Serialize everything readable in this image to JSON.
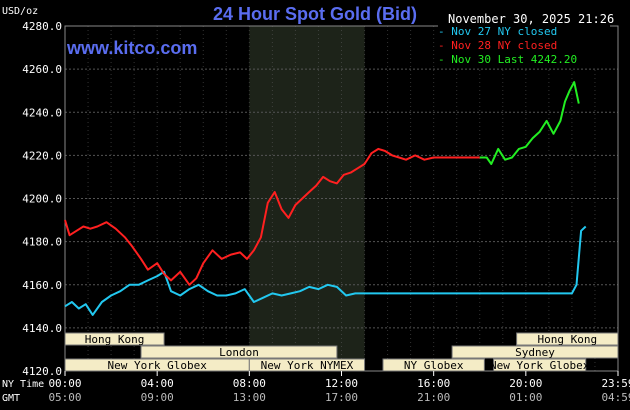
{
  "header": {
    "title": "24 Hour Spot Gold (Bid)",
    "brand": "www.kitco.com",
    "unit": "USD/oz",
    "timestamp": "November 30, 2025 21:26"
  },
  "legend": {
    "placement": "top-right",
    "items": [
      {
        "label": "- Nov 27 NY closed",
        "color": "#22c8f0"
      },
      {
        "label": "- Nov 28 NY closed",
        "color": "#ff2020"
      },
      {
        "label": "- Nov 30 Last 4242.20",
        "color": "#22ee22"
      }
    ]
  },
  "sessions": {
    "rows": [
      [
        {
          "label": "Hong Kong",
          "start": 0,
          "end": 4.3
        },
        {
          "label": "Hong Kong",
          "start": 19.6,
          "end": 24
        }
      ],
      [
        {
          "label": "London",
          "start": 3.3,
          "end": 11.8
        },
        {
          "label": "Sydney",
          "start": 16.8,
          "end": 24
        }
      ],
      [
        {
          "label": "New York Globex",
          "start": 0,
          "end": 8.0
        },
        {
          "label": "New York NYMEX",
          "start": 8.0,
          "end": 13.0
        },
        {
          "label": "NY Globex",
          "start": 13.8,
          "end": 18.2
        },
        {
          "label": "New York Globex",
          "start": 18.6,
          "end": 22.6
        }
      ]
    ]
  },
  "time_rows": [
    {
      "name": "NY Time",
      "ticks": [
        "00:00",
        "04:00",
        "08:00",
        "12:00",
        "16:00",
        "20:00",
        "23:59"
      ]
    },
    {
      "name": "GMT",
      "ticks": [
        "05:00",
        "09:00",
        "13:00",
        "17:00",
        "21:00",
        "01:00",
        "04:59"
      ]
    }
  ],
  "colors": {
    "background": "#000000",
    "plot_background": "#000000",
    "grid": "#555555",
    "nymex_shade": "#1d2319",
    "session_fill": "#f4ecc6",
    "session_text": "#000000"
  },
  "chart_data": {
    "type": "line",
    "title": "24 Hour Spot Gold (Bid)",
    "ylabel": "USD/oz",
    "xlabel": "NY Time",
    "ylim": [
      4120,
      4280
    ],
    "xlim": [
      0,
      24
    ],
    "yticks": [
      "4120.0",
      "4140.0",
      "4160.0",
      "4180.0",
      "4200.0",
      "4220.0",
      "4240.0",
      "4260.0",
      "4280.0"
    ],
    "xticks": [
      0,
      4,
      8,
      12,
      16,
      20,
      24
    ],
    "grid": true,
    "nymex_session": [
      8.0,
      13.0
    ],
    "series": [
      {
        "name": "Nov 27 NY closed",
        "color": "#22c8f0",
        "x": [
          0,
          0.3,
          0.6,
          0.9,
          1.2,
          1.6,
          2.0,
          2.4,
          2.8,
          3.2,
          3.6,
          4.0,
          4.3,
          4.6,
          5.0,
          5.4,
          5.8,
          6.2,
          6.6,
          7.0,
          7.4,
          7.8,
          8.2,
          8.6,
          9.0,
          9.4,
          9.8,
          10.2,
          10.6,
          11.0,
          11.4,
          11.8,
          12.2,
          12.6,
          13.0,
          14,
          15,
          16,
          17,
          18,
          19,
          20,
          21,
          22.0,
          22.2,
          22.4,
          22.6
        ],
        "values": [
          4150,
          4152,
          4149,
          4151,
          4146,
          4152,
          4155,
          4157,
          4160,
          4160,
          4162,
          4164,
          4166,
          4157,
          4155,
          4158,
          4160,
          4157,
          4155,
          4155,
          4156,
          4158,
          4152,
          4154,
          4156,
          4155,
          4156,
          4157,
          4159,
          4158,
          4160,
          4159,
          4155,
          4156,
          4156,
          4156,
          4156,
          4156,
          4156,
          4156,
          4156,
          4156,
          4156,
          4156,
          4160,
          4185,
          4187
        ]
      },
      {
        "name": "Nov 28 NY closed",
        "color": "#ff2020",
        "x": [
          0,
          0.2,
          0.5,
          0.8,
          1.1,
          1.4,
          1.8,
          2.2,
          2.6,
          2.9,
          3.3,
          3.6,
          4.0,
          4.3,
          4.6,
          5.0,
          5.4,
          5.7,
          6.0,
          6.4,
          6.8,
          7.2,
          7.6,
          7.9,
          8.2,
          8.5,
          8.8,
          9.1,
          9.4,
          9.7,
          10.0,
          10.3,
          10.6,
          10.9,
          11.2,
          11.5,
          11.8,
          12.1,
          12.4,
          12.7,
          13.0,
          13.3,
          13.6,
          13.9,
          14.2,
          14.5,
          14.8,
          15.2,
          15.6,
          16.0,
          16.4,
          16.8,
          17.2,
          17.6,
          18.0
        ],
        "values": [
          4190,
          4183,
          4185,
          4187,
          4186,
          4187,
          4189,
          4186,
          4182,
          4178,
          4172,
          4167,
          4170,
          4165,
          4162,
          4166,
          4160,
          4163,
          4170,
          4176,
          4172,
          4174,
          4175,
          4172,
          4176,
          4182,
          4198,
          4203,
          4195,
          4191,
          4197,
          4200,
          4203,
          4206,
          4210,
          4208,
          4207,
          4211,
          4212,
          4214,
          4216,
          4221,
          4223,
          4222,
          4220,
          4219,
          4218,
          4220,
          4218,
          4219,
          4219,
          4219,
          4219,
          4219,
          4219
        ]
      },
      {
        "name": "Nov 30 Last 4242.20",
        "color": "#22ee22",
        "x": [
          18.0,
          18.3,
          18.5,
          18.8,
          19.1,
          19.4,
          19.7,
          20.0,
          20.3,
          20.6,
          20.9,
          21.2,
          21.5,
          21.7,
          21.9,
          22.1,
          22.3
        ],
        "values": [
          4219,
          4219,
          4216,
          4223,
          4218,
          4219,
          4223,
          4224,
          4228,
          4231,
          4236,
          4230,
          4236,
          4245,
          4250,
          4254,
          4244
        ]
      }
    ]
  }
}
